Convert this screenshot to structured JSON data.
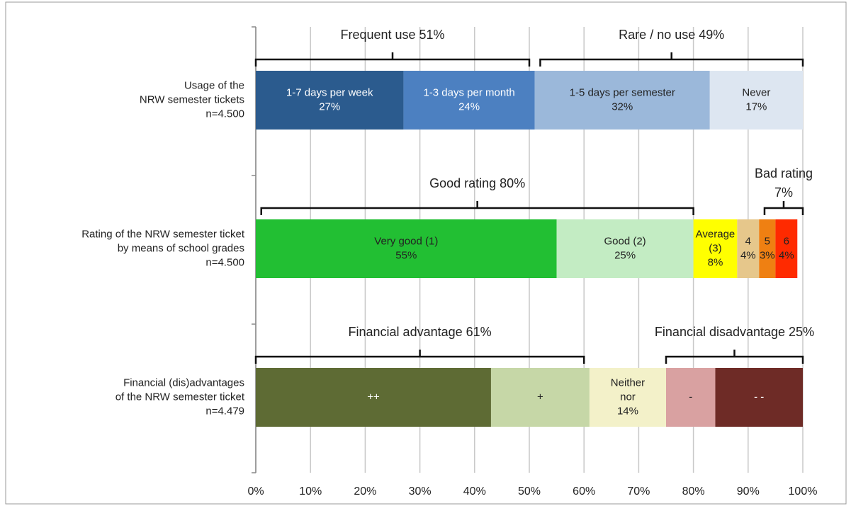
{
  "chart_data": {
    "type": "stacked-barh",
    "xlim": [
      0,
      100
    ],
    "xticks": [
      {
        "value": 0,
        "label": "0%"
      },
      {
        "value": 10,
        "label": "10%"
      },
      {
        "value": 20,
        "label": "20%"
      },
      {
        "value": 30,
        "label": "30%"
      },
      {
        "value": 40,
        "label": "40%"
      },
      {
        "value": 50,
        "label": "50%"
      },
      {
        "value": 60,
        "label": "60%"
      },
      {
        "value": 70,
        "label": "70%"
      },
      {
        "value": 80,
        "label": "80%"
      },
      {
        "value": 90,
        "label": "90%"
      },
      {
        "value": 100,
        "label": "100%"
      }
    ],
    "grid": true,
    "rows": [
      {
        "label": [
          "Usage of the",
          "NRW semester tickets",
          "n=4.500"
        ],
        "segments": [
          {
            "name": [
              "1-7 days per week"
            ],
            "value": 27,
            "value_label": "27%",
            "color": "#2b5b8e",
            "text_color": "#ffffff"
          },
          {
            "name": [
              "1-3 days per month"
            ],
            "value": 24,
            "value_label": "24%",
            "color": "#4c80c1",
            "text_color": "#ffffff"
          },
          {
            "name": [
              "1-5 days per semester"
            ],
            "value": 32,
            "value_label": "32%",
            "color": "#9bb8da",
            "text_color": "#222222"
          },
          {
            "name": [
              "Never"
            ],
            "value": 17,
            "value_label": "17%",
            "color": "#dde6f1",
            "text_color": "#222222"
          }
        ],
        "brackets": [
          {
            "label": [
              "Frequent use 51%"
            ],
            "from": 0,
            "to": 50
          },
          {
            "label": [
              "Rare / no use 49%"
            ],
            "from": 52,
            "to": 100
          }
        ]
      },
      {
        "label": [
          "Rating of the NRW semester ticket",
          "by means of school grades",
          "n=4.500"
        ],
        "segments": [
          {
            "name": [
              "Very good (1)"
            ],
            "value": 55,
            "value_label": "55%",
            "color": "#22bf33",
            "text_color": "#222222"
          },
          {
            "name": [
              "Good (2)"
            ],
            "value": 25,
            "value_label": "25%",
            "color": "#c3ecc3",
            "text_color": "#222222"
          },
          {
            "name": [
              "Average",
              "(3)"
            ],
            "value": 8,
            "value_label": "8%",
            "color": "#ffff00",
            "text_color": "#222222"
          },
          {
            "name": [
              "4"
            ],
            "value": 4,
            "value_label": "4%",
            "color": "#e6c78b",
            "text_color": "#222222"
          },
          {
            "name": [
              "5"
            ],
            "value": 3,
            "value_label": "3%",
            "color": "#ef8012",
            "text_color": "#222222"
          },
          {
            "name": [
              "6"
            ],
            "value": 4,
            "value_label": "4%",
            "color": "#ff2a00",
            "text_color": "#222222"
          }
        ],
        "brackets": [
          {
            "label": [
              "Good rating 80%"
            ],
            "from": 1,
            "to": 80
          },
          {
            "label": [
              "Bad rating",
              "7%"
            ],
            "from": 93,
            "to": 100
          }
        ]
      },
      {
        "label": [
          "Financial (dis)advantages",
          "of the NRW semester ticket",
          "n=4.479"
        ],
        "segments": [
          {
            "name": [
              "++"
            ],
            "value": 43,
            "color": "#5e6b34",
            "text_color": "#ffffff"
          },
          {
            "name": [
              "+"
            ],
            "value": 18,
            "color": "#c6d7a7",
            "text_color": "#222222"
          },
          {
            "name": [
              "Neither",
              "nor"
            ],
            "value": 14,
            "value_label": "14%",
            "color": "#f3f1c9",
            "text_color": "#222222"
          },
          {
            "name": [
              "-"
            ],
            "value": 9,
            "color": "#d9a1a1",
            "text_color": "#222222"
          },
          {
            "name": [
              "- -"
            ],
            "value": 16,
            "color": "#6e2b26",
            "text_color": "#ffffff"
          }
        ],
        "brackets": [
          {
            "label": [
              "Financial advantage 61%"
            ],
            "from": 0,
            "to": 60
          },
          {
            "label": [
              "Financial disadvantage 25%"
            ],
            "from": 75,
            "to": 100
          }
        ]
      }
    ]
  }
}
